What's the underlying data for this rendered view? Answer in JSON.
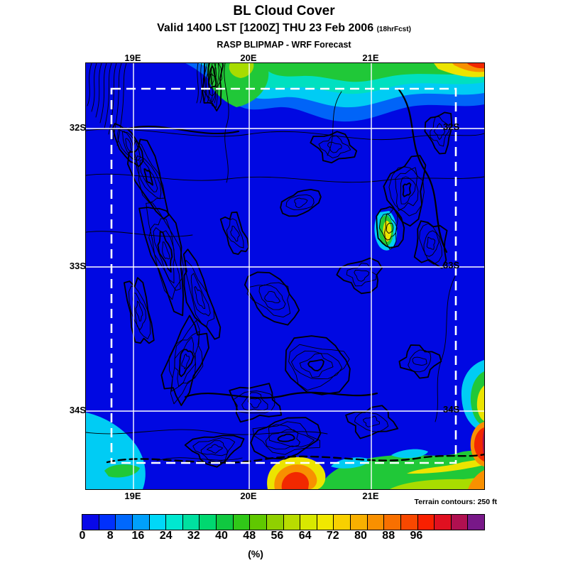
{
  "header": {
    "title": "BL Cloud Cover",
    "valid_line": "Valid 1400 LST [1200Z] THU 23 Feb 2006",
    "fcst_note": "(18hrFcst)",
    "model_line": "RASP BLIPMAP - WRF Forecast"
  },
  "map": {
    "lon_labels": [
      "19E",
      "20E",
      "21E"
    ],
    "lat_labels": [
      "32S",
      "33S",
      "34S"
    ],
    "palette": {
      "background": "#0008E2",
      "light_blue": "#0064F8",
      "cyan": "#00CCF4",
      "teal": "#00E0C0",
      "green": "#20C838",
      "yellow_green": "#A8DC00",
      "yellow": "#ECE400",
      "orange": "#F89000",
      "red": "#F22800",
      "dark_red": "#A01050",
      "contour": "#000000",
      "grid": "#FFFFFF",
      "domain_box": "#FFFFFF"
    }
  },
  "colorbar": {
    "tick_labels": [
      "0",
      "8",
      "16",
      "24",
      "32",
      "40",
      "48",
      "56",
      "64",
      "72",
      "80",
      "88",
      "96"
    ],
    "unit_label": "(%)",
    "note": "Terrain contours: 250 ft",
    "colors": [
      "#0808E8",
      "#0030FC",
      "#0068FC",
      "#00A0FC",
      "#00D8F8",
      "#00E8D0",
      "#00E0A0",
      "#00D870",
      "#10C840",
      "#30C818",
      "#60C800",
      "#90D000",
      "#B8DC00",
      "#D8E800",
      "#F0E800",
      "#F8D000",
      "#F8B000",
      "#F89000",
      "#F87000",
      "#F84800",
      "#F82000",
      "#E01020",
      "#B01050",
      "#781888"
    ]
  }
}
